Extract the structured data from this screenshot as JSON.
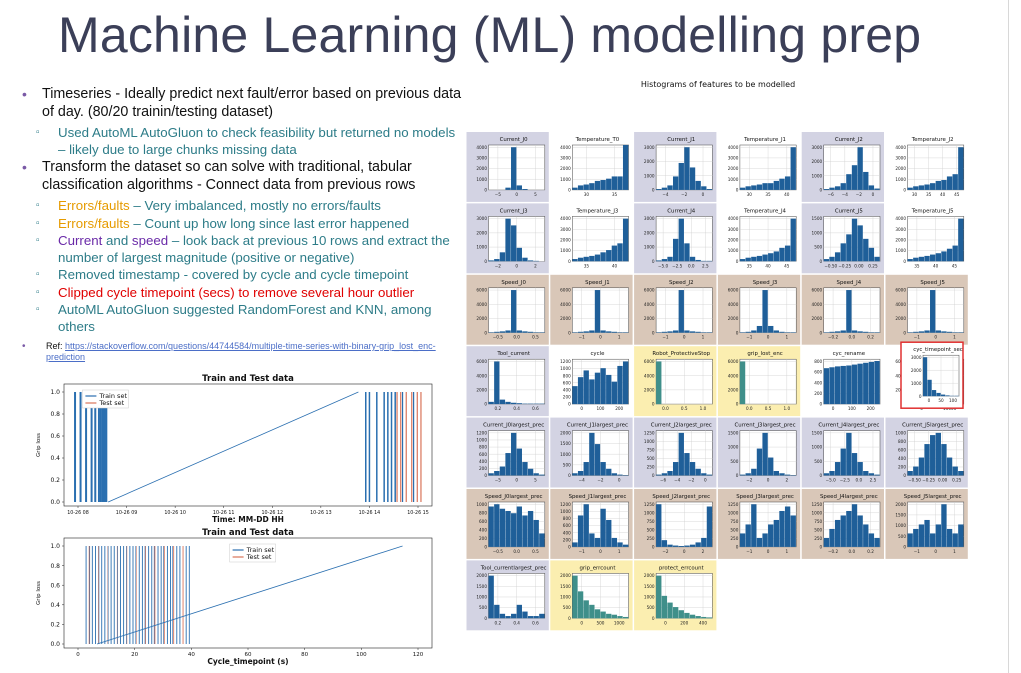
{
  "slide": {
    "title": "Machine Learning (ML) modelling prep",
    "bullets": [
      {
        "text": "Timeseries - Ideally predict next fault/error based on previous data of day.  (80/20 trainin/testing  dataset)",
        "subs": [
          {
            "parts": [
              {
                "text": "Used AutoML AutoGluon to check feasibility but returned no models – likely due to large chunks missing data",
                "style": ""
              }
            ]
          }
        ]
      },
      {
        "text": "Transform the dataset  so can solve with traditional, tabular classification algorithms - Connect data  from previous rows",
        "subs": [
          {
            "parts": [
              {
                "text": "Errors/faults",
                "style": "orange"
              },
              {
                "text": " – Very imbalanced,  mostly no errors/faults",
                "style": ""
              }
            ]
          },
          {
            "parts": [
              {
                "text": "Errors/faults",
                "style": "orange"
              },
              {
                "text": " – Count up how long since last error happened",
                "style": ""
              }
            ]
          },
          {
            "parts": [
              {
                "text": "Current",
                "style": "purple"
              },
              {
                "text": " and ",
                "style": ""
              },
              {
                "text": "speed",
                "style": "purple"
              },
              {
                "text": " – look back at previous 10 rows and extract the number of largest magnitude (positive or negative)",
                "style": ""
              }
            ]
          },
          {
            "parts": [
              {
                "text": "Removed timestamp   - covered by cycle and cycle timepoint",
                "style": ""
              }
            ]
          },
          {
            "parts": [
              {
                "text": "Clipped cycle timepoint (secs) to remove several hour outlier",
                "style": "red"
              }
            ]
          },
          {
            "parts": [
              {
                "text": "AutoML AutoGluon suggested RandomForest and KNN, among others",
                "style": ""
              }
            ]
          }
        ]
      }
    ],
    "ref_label": "Ref: ",
    "ref_link": "https://stackoverflow.com/questions/44744584/multiple-time-series-with-binary-grip_lost_enc-prediction"
  },
  "hist_title": "Histograms of features to be modelled",
  "colors": {
    "bar": "#1f5f99",
    "bar_teal": "#3f8f8a",
    "bg_lavender": "#d3d3e3",
    "bg_tan": "#d9c7b8",
    "bg_yellow": "#fbeeb0",
    "train": "#2a6fb0",
    "test": "#d9745a",
    "highlight": "#e03030"
  },
  "histograms": [
    {
      "title": "Current_J0",
      "bg": "lavender",
      "xticks": [
        "−5",
        "0",
        "5"
      ],
      "yticks": [
        "0",
        "1000",
        "2000",
        "3000",
        "4000"
      ],
      "bars": [
        0,
        0,
        0,
        0.05,
        0.95,
        0.1,
        0.02,
        0,
        0,
        0
      ]
    },
    {
      "title": "Temperature_T0",
      "bg": "white",
      "xticks": [
        "30",
        "35"
      ],
      "yticks": [
        "0",
        "1000",
        "2000",
        "3000",
        "4000"
      ],
      "bars": [
        0.05,
        0.1,
        0.12,
        0.15,
        0.2,
        0.22,
        0.25,
        0.3,
        0.3,
        1.0
      ]
    },
    {
      "title": "Current_J1",
      "bg": "lavender",
      "xticks": [
        "−4",
        "−2",
        "0"
      ],
      "yticks": [
        "0",
        "1000",
        "2000",
        "3000"
      ],
      "bars": [
        0.02,
        0.05,
        0.1,
        0.3,
        0.6,
        0.95,
        0.5,
        0.2,
        0.08,
        0.02
      ]
    },
    {
      "title": "Temperature_J1",
      "bg": "white",
      "xticks": [
        "30",
        "35",
        "40"
      ],
      "yticks": [
        "0",
        "1000",
        "2000",
        "3000",
        "4000"
      ],
      "bars": [
        0.05,
        0.08,
        0.1,
        0.12,
        0.15,
        0.15,
        0.2,
        0.25,
        0.3,
        0.95
      ]
    },
    {
      "title": "Current_J2",
      "bg": "lavender",
      "xticks": [
        "−6",
        "−4",
        "−2",
        "0"
      ],
      "yticks": [
        "0",
        "1000",
        "2000",
        "3000"
      ],
      "bars": [
        0.02,
        0.05,
        0.08,
        0.15,
        0.35,
        0.55,
        0.95,
        0.4,
        0.1,
        0.03
      ]
    },
    {
      "title": "Temperature_J2",
      "bg": "white",
      "xticks": [
        "30",
        "35",
        "40",
        "45"
      ],
      "yticks": [
        "0",
        "1000",
        "2000",
        "3000",
        "4000"
      ],
      "bars": [
        0.05,
        0.08,
        0.1,
        0.12,
        0.15,
        0.2,
        0.22,
        0.3,
        0.35,
        0.95
      ]
    },
    {
      "title": "Current_J3",
      "bg": "lavender",
      "xticks": [
        "−2",
        "0",
        "2"
      ],
      "yticks": [
        "0",
        "1000",
        "2000",
        "3000"
      ],
      "bars": [
        0.02,
        0.05,
        0.2,
        0.95,
        0.8,
        0.3,
        0.08,
        0.02,
        0.01,
        0
      ]
    },
    {
      "title": "Temperature_J3",
      "bg": "white",
      "xticks": [
        "35",
        "40"
      ],
      "yticks": [
        "0",
        "1000",
        "2000",
        "3000",
        "4000"
      ],
      "bars": [
        0.05,
        0.08,
        0.1,
        0.12,
        0.15,
        0.2,
        0.25,
        0.35,
        0.4,
        0.95
      ]
    },
    {
      "title": "Current_J4",
      "bg": "lavender",
      "xticks": [
        "−5.0",
        "−2.5",
        "0.0",
        "2.5"
      ],
      "yticks": [
        "0",
        "1000",
        "2000",
        "3000"
      ],
      "bars": [
        0.02,
        0.05,
        0.1,
        0.5,
        0.95,
        0.4,
        0.1,
        0.03,
        0.01,
        0.01
      ]
    },
    {
      "title": "Temperature_J4",
      "bg": "white",
      "xticks": [
        "35",
        "40",
        "45"
      ],
      "yticks": [
        "0",
        "1000",
        "2000",
        "3000",
        "4000"
      ],
      "bars": [
        0.05,
        0.08,
        0.1,
        0.12,
        0.15,
        0.18,
        0.22,
        0.3,
        0.35,
        0.95
      ]
    },
    {
      "title": "Current_J5",
      "bg": "lavender",
      "xticks": [
        "−0.50",
        "−0.25",
        "0.00",
        "0.25"
      ],
      "yticks": [
        "0",
        "500",
        "1000",
        "1500"
      ],
      "bars": [
        0.05,
        0.1,
        0.2,
        0.4,
        0.6,
        0.95,
        0.8,
        0.5,
        0.3,
        0.1
      ]
    },
    {
      "title": "Temperature_J5",
      "bg": "white",
      "xticks": [
        "35",
        "40",
        "45"
      ],
      "yticks": [
        "0",
        "1000",
        "2000",
        "3000",
        "4000"
      ],
      "bars": [
        0.05,
        0.08,
        0.1,
        0.12,
        0.15,
        0.18,
        0.22,
        0.28,
        0.35,
        0.95
      ]
    },
    {
      "title": "Speed_J0",
      "bg": "tan",
      "xticks": [
        "−0.5",
        "0.0",
        "0.5"
      ],
      "yticks": [
        "0",
        "2000",
        "4000",
        "6000"
      ],
      "bars": [
        0.01,
        0.02,
        0.03,
        0.05,
        0.95,
        0.05,
        0.03,
        0.02,
        0.01,
        0.01
      ]
    },
    {
      "title": "Speed_J1",
      "bg": "tan",
      "xticks": [
        "−1",
        "0",
        "1"
      ],
      "yticks": [
        "0",
        "2000",
        "4000",
        "6000"
      ],
      "bars": [
        0.01,
        0.02,
        0.03,
        0.05,
        0.95,
        0.05,
        0.03,
        0.02,
        0.01,
        0.01
      ]
    },
    {
      "title": "Speed_J2",
      "bg": "tan",
      "xticks": [
        "−1",
        "0",
        "1"
      ],
      "yticks": [
        "0",
        "2000",
        "4000",
        "6000"
      ],
      "bars": [
        0.01,
        0.02,
        0.03,
        0.05,
        0.95,
        0.05,
        0.03,
        0.02,
        0.01,
        0.01
      ]
    },
    {
      "title": "Speed_J3",
      "bg": "tan",
      "xticks": [
        "−1",
        "0",
        "1"
      ],
      "yticks": [
        "0",
        "2000",
        "4000",
        "6000"
      ],
      "bars": [
        0.01,
        0.02,
        0.05,
        0.15,
        0.95,
        0.15,
        0.05,
        0.02,
        0.01,
        0.01
      ]
    },
    {
      "title": "Speed_J4",
      "bg": "tan",
      "xticks": [
        "−0.2",
        "0.0",
        "0.2"
      ],
      "yticks": [
        "0",
        "2000",
        "4000",
        "6000"
      ],
      "bars": [
        0.01,
        0.02,
        0.03,
        0.05,
        0.95,
        0.05,
        0.03,
        0.02,
        0.01,
        0.01
      ]
    },
    {
      "title": "Speed_J5",
      "bg": "tan",
      "xticks": [
        "−1",
        "0",
        "1"
      ],
      "yticks": [
        "0",
        "2000",
        "4000",
        "6000"
      ],
      "bars": [
        0.01,
        0.02,
        0.03,
        0.05,
        0.95,
        0.05,
        0.03,
        0.02,
        0.01,
        0.01
      ]
    },
    {
      "title": "Tool_current",
      "bg": "lavender",
      "xticks": [
        "0.2",
        "0.4",
        "0.6"
      ],
      "yticks": [
        "0",
        "2000",
        "4000",
        "6000"
      ],
      "bars": [
        0.05,
        0.95,
        0.1,
        0.05,
        0.03,
        0.02,
        0.01,
        0.01,
        0.01,
        0.01
      ]
    },
    {
      "title": "cycle",
      "bg": "white",
      "xticks": [
        "0",
        "100",
        "200"
      ],
      "yticks": [
        "0",
        "200",
        "400",
        "600",
        "800",
        "1000",
        "1200"
      ],
      "bars": [
        0.4,
        0.6,
        0.75,
        0.55,
        0.7,
        0.8,
        0.65,
        0.5,
        0.85,
        0.95
      ]
    },
    {
      "title": "Robot_ProtectiveStop",
      "bg": "yellow",
      "xticks": [
        "0.0",
        "0.5",
        "1.0"
      ],
      "yticks": [
        "0",
        "2000",
        "4000",
        "6000"
      ],
      "bars": [
        0.95,
        0,
        0,
        0,
        0,
        0,
        0,
        0,
        0,
        0
      ]
    },
    {
      "title": "grip_lost_enc",
      "bg": "yellow",
      "xticks": [
        "0.0",
        "0.5",
        "1.0"
      ],
      "yticks": [
        "0",
        "2000",
        "4000",
        "6000"
      ],
      "bars": [
        0.95,
        0,
        0,
        0,
        0,
        0,
        0,
        0,
        0,
        0
      ]
    },
    {
      "title": "cyc_rename",
      "bg": "white",
      "xticks": [
        "0",
        "100",
        "200"
      ],
      "yticks": [
        "0",
        "200",
        "400",
        "600",
        "800"
      ],
      "bars": [
        0.8,
        0.82,
        0.84,
        0.85,
        0.86,
        0.88,
        0.9,
        0.92,
        0.94,
        0.96
      ]
    },
    {
      "title": "cyc_timepoint",
      "bg": "white",
      "xticks": [
        "0",
        "10000"
      ],
      "yticks": [
        "0",
        "2000",
        "4000",
        "6000"
      ],
      "bars": [
        0.95,
        0,
        0,
        0,
        0,
        0,
        0,
        0,
        0,
        0
      ]
    },
    {
      "title": "Current_J0largest_prec",
      "bg": "lavender",
      "xticks": [
        "−5",
        "0",
        "5"
      ],
      "yticks": [
        "0",
        "200",
        "400",
        "600",
        "800",
        "1000",
        "1200"
      ],
      "bars": [
        0.05,
        0.1,
        0.2,
        0.5,
        0.95,
        0.6,
        0.3,
        0.15,
        0.05,
        0.02
      ]
    },
    {
      "title": "Current_J1largest_prec",
      "bg": "lavender",
      "xticks": [
        "−4",
        "−2",
        "0"
      ],
      "yticks": [
        "0",
        "500",
        "1000",
        "1500",
        "2000"
      ],
      "bars": [
        0.05,
        0.1,
        0.3,
        0.95,
        0.7,
        0.3,
        0.15,
        0.05,
        0.02,
        0.01
      ]
    },
    {
      "title": "Current_J2largest_prec",
      "bg": "lavender",
      "xticks": [
        "−6",
        "−4",
        "−2",
        "0"
      ],
      "yticks": [
        "0",
        "250",
        "500",
        "750",
        "1000",
        "1250"
      ],
      "bars": [
        0.02,
        0.05,
        0.1,
        0.3,
        0.95,
        0.5,
        0.3,
        0.15,
        0.05,
        0.02
      ]
    },
    {
      "title": "Current_J3largest_prec",
      "bg": "lavender",
      "xticks": [
        "−2",
        "0",
        "2"
      ],
      "yticks": [
        "0",
        "500",
        "1000",
        "1500"
      ],
      "bars": [
        0.02,
        0.05,
        0.15,
        0.6,
        0.95,
        0.4,
        0.1,
        0.05,
        0.02,
        0.01
      ]
    },
    {
      "title": "Current_J4largest_prec",
      "bg": "lavender",
      "xticks": [
        "−5.0",
        "−2.5",
        "0.0",
        "2.5"
      ],
      "yticks": [
        "0",
        "500",
        "1000",
        "1500"
      ],
      "bars": [
        0.05,
        0.1,
        0.3,
        0.6,
        0.95,
        0.5,
        0.3,
        0.1,
        0.05,
        0.02
      ]
    },
    {
      "title": "Current_J5largest_prec",
      "bg": "lavender",
      "xticks": [
        "−0.50",
        "−0.25",
        "0.00",
        "0.25"
      ],
      "yticks": [
        "0",
        "200",
        "400",
        "600",
        "800",
        "1000"
      ],
      "bars": [
        0.1,
        0.2,
        0.4,
        0.7,
        0.9,
        0.95,
        0.7,
        0.4,
        0.2,
        0.1
      ]
    },
    {
      "title": "Speed_J0largest_prec",
      "bg": "tan",
      "xticks": [
        "−0.5",
        "0.0",
        "0.5"
      ],
      "yticks": [
        "0",
        "200",
        "400",
        "600",
        "800",
        "1000"
      ],
      "bars": [
        0.9,
        0.95,
        0.85,
        0.8,
        0.75,
        0.9,
        0.7,
        0.8,
        0.6,
        0.3
      ]
    },
    {
      "title": "Speed_J1largest_prec",
      "bg": "tan",
      "xticks": [
        "−1",
        "0",
        "1"
      ],
      "yticks": [
        "0",
        "200",
        "400",
        "600",
        "800",
        "1000",
        "1200"
      ],
      "bars": [
        0.1,
        0.7,
        0.95,
        0.3,
        0.2,
        0.85,
        0.6,
        0.2,
        0.1,
        0.05
      ]
    },
    {
      "title": "Speed_J2largest_prec",
      "bg": "tan",
      "xticks": [
        "−2",
        "0",
        "2"
      ],
      "yticks": [
        "0",
        "250",
        "500",
        "750",
        "1000",
        "1250"
      ],
      "bars": [
        0.95,
        0.15,
        0.05,
        0.03,
        0.02,
        0.03,
        0.05,
        0.1,
        0.2,
        0.9
      ]
    },
    {
      "title": "Speed_J3largest_prec",
      "bg": "tan",
      "xticks": [
        "−1",
        "0",
        "1"
      ],
      "yticks": [
        "0",
        "250",
        "500",
        "750",
        "1000",
        "1250"
      ],
      "bars": [
        0.3,
        0.5,
        0.95,
        0.2,
        0.3,
        0.5,
        0.6,
        0.8,
        0.9,
        0.7
      ]
    },
    {
      "title": "Speed_J4largest_prec",
      "bg": "tan",
      "xticks": [
        "−0.2",
        "0.0",
        "0.2"
      ],
      "yticks": [
        "0",
        "250",
        "500",
        "750",
        "1000",
        "1250"
      ],
      "bars": [
        0.2,
        0.4,
        0.6,
        0.7,
        0.8,
        0.95,
        0.7,
        0.5,
        0.3,
        0.2
      ]
    },
    {
      "title": "Speed_J5largest_prec",
      "bg": "tan",
      "xticks": [
        "−1",
        "0",
        "1"
      ],
      "yticks": [
        "0",
        "500",
        "1000",
        "1500",
        "2000"
      ],
      "bars": [
        0.3,
        0.4,
        0.5,
        0.6,
        0.3,
        0.5,
        0.95,
        0.4,
        0.3,
        0.5
      ]
    },
    {
      "title": "Tool_currentlargest_prec",
      "bg": "lavender",
      "xticks": [
        "0.2",
        "0.4",
        "0.6"
      ],
      "yticks": [
        "0",
        "500",
        "1000",
        "1500",
        "2000"
      ],
      "bars": [
        0.95,
        0.3,
        0.1,
        0.05,
        0.1,
        0.3,
        0.15,
        0.05,
        0.05,
        0.1
      ]
    },
    {
      "title": "grip_errcount",
      "bg": "yellow",
      "xticks": [
        "0",
        "500",
        "1000"
      ],
      "yticks": [
        "0",
        "500",
        "1000",
        "1500",
        "2000"
      ],
      "bars": [
        0.95,
        0.6,
        0.4,
        0.3,
        0.2,
        0.15,
        0.1,
        0.08,
        0.05,
        0.03
      ]
    },
    {
      "title": "protect_errcount",
      "bg": "yellow",
      "xticks": [
        "0",
        "200",
        "400"
      ],
      "yticks": [
        "0",
        "500",
        "1000",
        "1500",
        "2000"
      ],
      "bars": [
        0.95,
        0.5,
        0.35,
        0.25,
        0.18,
        0.12,
        0.08,
        0.05,
        0.03,
        0.02
      ]
    }
  ],
  "extra_hist": {
    "title": "cyc_timepoint_sec",
    "xticks": [
      "0",
      "50",
      "100"
    ],
    "yticks": [
      "0",
      "1000",
      "2000",
      "3000"
    ],
    "bars": [
      0.95,
      0.4,
      0.15,
      0.08,
      0.04,
      0.02,
      0.01,
      0.01
    ]
  },
  "chart_data": [
    {
      "type": "line",
      "title": "Train and Test data",
      "xlabel": "Time: MM-DD HH",
      "ylabel": "Grip loss",
      "x_ticks": [
        "10-26 08",
        "10-26 09",
        "10-26 10",
        "10-26 11",
        "10-26 12",
        "10-26 13",
        "10-26 14",
        "10-26 15"
      ],
      "y_ticks": [
        "0.0",
        "0.2",
        "0.4",
        "0.6",
        "0.8",
        "1.0"
      ],
      "ylim": [
        0,
        1
      ],
      "legend_position": "top-left",
      "series": [
        {
          "name": "Train set"
        },
        {
          "name": "Test set"
        }
      ]
    },
    {
      "type": "line",
      "title": "Train and Test data",
      "xlabel": "Cycle_timepoint (s)",
      "ylabel": "Grip loss",
      "x_ticks": [
        "0",
        "20",
        "40",
        "60",
        "80",
        "100",
        "120"
      ],
      "y_ticks": [
        "0.0",
        "0.2",
        "0.4",
        "0.6",
        "0.8",
        "1.0"
      ],
      "ylim": [
        0,
        1
      ],
      "legend_position": "top-center",
      "series": [
        {
          "name": "Train set"
        },
        {
          "name": "Test set"
        }
      ]
    }
  ]
}
